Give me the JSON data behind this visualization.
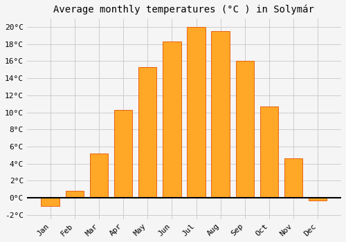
{
  "title": "Average monthly temperatures (°C ) in Solymár",
  "months": [
    "Jan",
    "Feb",
    "Mar",
    "Apr",
    "May",
    "Jun",
    "Jul",
    "Aug",
    "Sep",
    "Oct",
    "Nov",
    "Dec"
  ],
  "values": [
    -1.0,
    0.8,
    5.2,
    10.3,
    15.3,
    18.3,
    20.0,
    19.5,
    16.0,
    10.7,
    4.6,
    -0.3
  ],
  "bar_color": "#FFA726",
  "bar_edge_color": "#E65100",
  "background_color": "#f5f5f5",
  "plot_bg_color": "#f5f5f5",
  "grid_color": "#cccccc",
  "ylim": [
    -2.5,
    21.0
  ],
  "yticks": [
    -2,
    0,
    2,
    4,
    6,
    8,
    10,
    12,
    14,
    16,
    18,
    20
  ],
  "ytick_labels": [
    "-2°C",
    "0°C",
    "2°C",
    "4°C",
    "6°C",
    "8°C",
    "10°C",
    "12°C",
    "14°C",
    "16°C",
    "18°C",
    "20°C"
  ],
  "title_fontsize": 10,
  "tick_fontsize": 8,
  "font_family": "monospace",
  "bar_width": 0.75
}
